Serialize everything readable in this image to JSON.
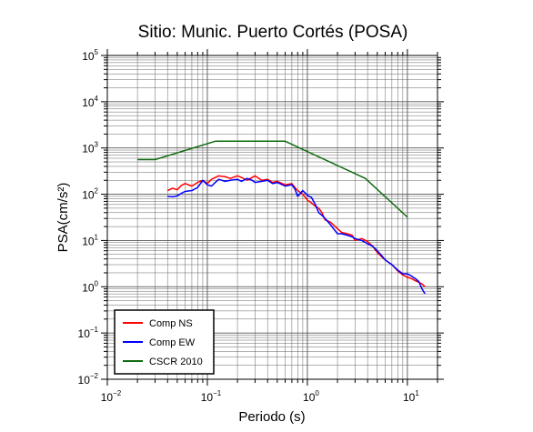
{
  "chart_data": {
    "type": "line",
    "title": "Sitio: Munic. Puerto Cortés (POSA)",
    "xlabel": "Periodo (s)",
    "ylabel": "PSA(cm/s²)",
    "xscale": "log",
    "yscale": "log",
    "xlim": [
      0.01,
      20
    ],
    "ylim": [
      0.01,
      100000
    ],
    "x_ticks": [
      {
        "base": "10",
        "exp": "−2"
      },
      {
        "base": "10",
        "exp": "−1"
      },
      {
        "base": "10",
        "exp": "0"
      },
      {
        "base": "10",
        "exp": "1"
      }
    ],
    "y_ticks": [
      {
        "base": "10",
        "exp": "−2"
      },
      {
        "base": "10",
        "exp": "−1"
      },
      {
        "base": "10",
        "exp": "0"
      },
      {
        "base": "10",
        "exp": "1"
      },
      {
        "base": "10",
        "exp": "2"
      },
      {
        "base": "10",
        "exp": "3"
      },
      {
        "base": "10",
        "exp": "4"
      },
      {
        "base": "10",
        "exp": "5"
      }
    ],
    "grid": true,
    "legend_position": "bottom-left",
    "series": [
      {
        "name": "Comp NS",
        "color": "#ff0000",
        "x": [
          0.04,
          0.045,
          0.05,
          0.055,
          0.06,
          0.07,
          0.08,
          0.09,
          0.1,
          0.11,
          0.12,
          0.13,
          0.15,
          0.17,
          0.2,
          0.22,
          0.25,
          0.28,
          0.3,
          0.35,
          0.4,
          0.45,
          0.5,
          0.6,
          0.7,
          0.75,
          0.8,
          0.9,
          1.0,
          1.1,
          1.2,
          1.3,
          1.4,
          1.5,
          1.7,
          2.0,
          2.2,
          2.5,
          2.8,
          3.0,
          3.5,
          4.0,
          4.5,
          5.0,
          5.5,
          6.0,
          7.0,
          8.0,
          9.0,
          10.0,
          11.0,
          12.0,
          13.0,
          14.0,
          15.0
        ],
        "y": [
          120,
          135,
          125,
          155,
          170,
          150,
          180,
          200,
          170,
          210,
          230,
          250,
          240,
          220,
          250,
          230,
          200,
          230,
          250,
          200,
          210,
          180,
          190,
          160,
          170,
          140,
          120,
          100,
          75,
          65,
          55,
          50,
          40,
          28,
          25,
          18,
          15,
          14,
          13,
          10,
          11,
          9.5,
          7.5,
          5.5,
          4.5,
          3.8,
          3.0,
          2.2,
          1.8,
          1.6,
          1.5,
          1.35,
          1.25,
          1.15,
          1.0
        ]
      },
      {
        "name": "Comp EW",
        "color": "#0000ff",
        "x": [
          0.04,
          0.045,
          0.05,
          0.055,
          0.06,
          0.07,
          0.08,
          0.09,
          0.1,
          0.11,
          0.12,
          0.13,
          0.15,
          0.17,
          0.2,
          0.22,
          0.25,
          0.28,
          0.3,
          0.35,
          0.4,
          0.45,
          0.5,
          0.6,
          0.7,
          0.75,
          0.8,
          0.9,
          1.0,
          1.1,
          1.2,
          1.3,
          1.4,
          1.5,
          1.7,
          2.0,
          2.2,
          2.5,
          2.8,
          3.0,
          3.5,
          4.0,
          4.5,
          5.0,
          5.5,
          6.0,
          7.0,
          8.0,
          9.0,
          10.0,
          11.0,
          12.0,
          13.0,
          14.0,
          15.0
        ],
        "y": [
          90,
          88,
          92,
          105,
          115,
          120,
          140,
          200,
          160,
          150,
          180,
          210,
          190,
          200,
          210,
          190,
          220,
          200,
          180,
          190,
          200,
          170,
          180,
          150,
          160,
          130,
          90,
          120,
          95,
          85,
          60,
          40,
          35,
          30,
          22,
          14,
          14,
          13,
          12,
          11,
          10,
          8.5,
          7.5,
          6,
          4.8,
          3.8,
          3.0,
          2.3,
          1.9,
          1.9,
          1.7,
          1.5,
          1.3,
          0.9,
          0.7
        ]
      },
      {
        "name": "CSCR 2010",
        "color": "#0f6b0f",
        "x": [
          0.02,
          0.03,
          0.12,
          0.6,
          3.8,
          10.0
        ],
        "y": [
          560,
          560,
          1400,
          1400,
          220,
          32
        ]
      }
    ]
  }
}
